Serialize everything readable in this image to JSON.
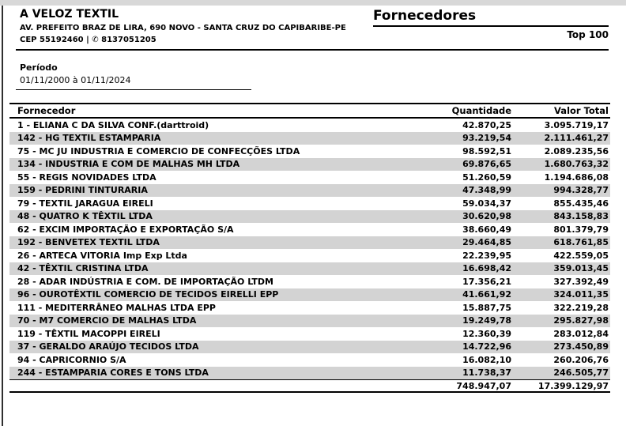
{
  "header": {
    "company_name": "A VELOZ TEXTIL",
    "address": "AV. PREFEITO BRAZ DE LIRA, 690 NOVO - SANTA CRUZ DO CAPIBARIBE-PE",
    "cep_phone": "CEP 55192460 | ✆ 8137051205",
    "report_title": "Fornecedores",
    "report_subtitle": "Top 100"
  },
  "period": {
    "label": "Período",
    "value": "01/11/2000 à 01/11/2024"
  },
  "table": {
    "columns": [
      "Fornecedor",
      "Quantidade",
      "Valor Total"
    ],
    "rows": [
      {
        "name": "1 - ELIANA C DA SILVA CONF.(darttroid)",
        "quantity": "42.870,25",
        "total": "3.095.719,17"
      },
      {
        "name": "142 - HG TEXTIL ESTAMPARIA",
        "quantity": "93.219,54",
        "total": "2.111.461,27"
      },
      {
        "name": "75 - MC JU INDUSTRIA E COMERCIO DE CONFECÇÕES LTDA",
        "quantity": "98.592,51",
        "total": "2.089.235,56"
      },
      {
        "name": "134 - INDUSTRIA E COM DE MALHAS MH LTDA",
        "quantity": "69.876,65",
        "total": "1.680.763,32"
      },
      {
        "name": "55 - REGIS NOVIDADES LTDA",
        "quantity": "51.260,59",
        "total": "1.194.686,08"
      },
      {
        "name": "159 - PEDRINI TINTURARIA",
        "quantity": "47.348,99",
        "total": "994.328,77"
      },
      {
        "name": "79 - TEXTIL JARAGUA EIRELI",
        "quantity": "59.034,37",
        "total": "855.435,46"
      },
      {
        "name": "48 - QUATRO K TÊXTIL LTDA",
        "quantity": "30.620,98",
        "total": "843.158,83"
      },
      {
        "name": "62 - EXCIM IMPORTAÇÃO E EXPORTAÇÃO S/A",
        "quantity": "38.660,49",
        "total": "801.379,79"
      },
      {
        "name": "192 - BENVETEX TEXTIL LTDA",
        "quantity": "29.464,85",
        "total": "618.761,85"
      },
      {
        "name": "26 - ARTECA VITORIA Imp Exp Ltda",
        "quantity": "22.239,95",
        "total": "422.559,05"
      },
      {
        "name": "42 - TÊXTIL CRISTINA LTDA",
        "quantity": "16.698,42",
        "total": "359.013,45"
      },
      {
        "name": "28 - ADAR INDÚSTRIA E COM. DE IMPORTAÇÃO LTDM",
        "quantity": "17.356,21",
        "total": "327.392,49"
      },
      {
        "name": "96 - OUROTÊXTIL COMERCIO DE TECIDOS EIRELLI EPP",
        "quantity": "41.661,92",
        "total": "324.011,35"
      },
      {
        "name": "111 - MEDITERRÂNEO MALHAS LTDA EPP",
        "quantity": "15.887,75",
        "total": "322.219,28"
      },
      {
        "name": "70 - M7 COMERCIO DE MALHAS LTDA",
        "quantity": "19.249,78",
        "total": "295.827,98"
      },
      {
        "name": "119 - TÊXTIL MACOPPI EIRELI",
        "quantity": "12.360,39",
        "total": "283.012,84"
      },
      {
        "name": "37 - GERALDO ARAÚJO TECIDOS LTDA",
        "quantity": "14.722,96",
        "total": "273.450,89"
      },
      {
        "name": "94 - CAPRICORNIO S/A",
        "quantity": "16.082,10",
        "total": "260.206,76"
      },
      {
        "name": "244 - ESTAMPARIA CORES E TONS LTDA",
        "quantity": "11.738,37",
        "total": "246.505,77"
      }
    ],
    "totals": {
      "quantity": "748.947,07",
      "total": "17.399.129,97"
    }
  },
  "colors": {
    "row_alt": "#d3d3d3",
    "top_strip": "#d8d8d8",
    "rule": "#000000"
  }
}
